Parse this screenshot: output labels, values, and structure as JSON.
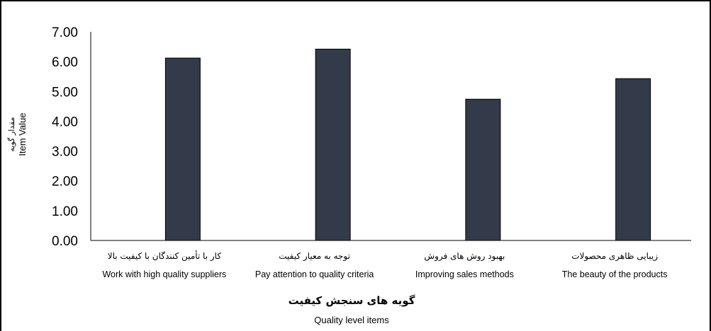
{
  "chart_data": {
    "type": "bar",
    "categories": [
      {
        "fa": "کار با تأمین کنندگان با کیفیت بالا",
        "en": "Work with high quality suppliers"
      },
      {
        "fa": "توجه به معیار کیفیت",
        "en": "Pay attention to quality criteria"
      },
      {
        "fa": "بهبود روش های فروش",
        "en": "Improving sales methods"
      },
      {
        "fa": "زیبایی ظاهری محصولات",
        "en": "The beauty of the products"
      }
    ],
    "values": [
      6.12,
      6.42,
      4.74,
      5.43
    ],
    "ylim": [
      0,
      7
    ],
    "yticks": [
      "0.00",
      "1.00",
      "2.00",
      "3.00",
      "4.00",
      "5.00",
      "6.00",
      "7.00"
    ],
    "xlabel_fa": "گویه های سنجش کیفیت",
    "xlabel_en": "Quality level items",
    "ylabel_fa": "مقدار گویه",
    "ylabel_en": "Item Value",
    "bar_color": "#333a4a",
    "grid": false,
    "legend": "none"
  }
}
